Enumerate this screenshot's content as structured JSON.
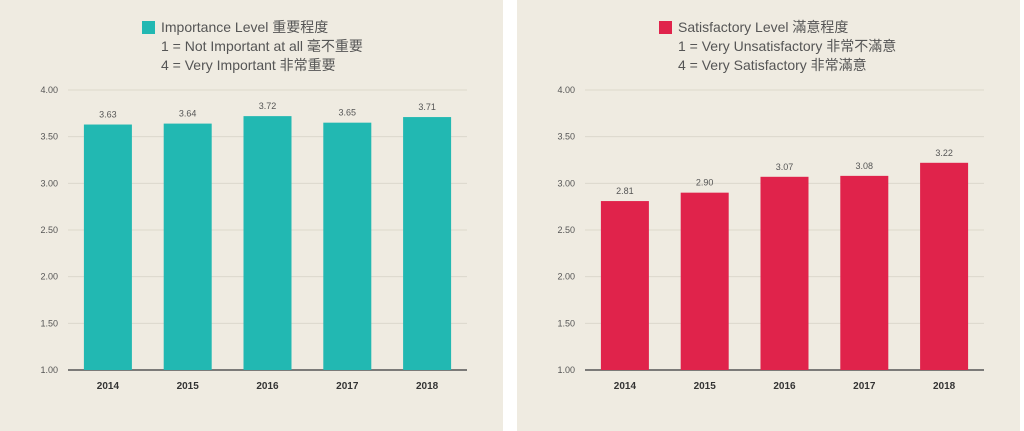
{
  "chart_data": [
    {
      "type": "bar",
      "legend": {
        "title": "Importance Level 重要程度",
        "lines": [
          "1 = Not Important at all 毫不重要",
          "4 = Very Important 非常重要"
        ]
      },
      "color": "#22b8b2",
      "categories": [
        "2014",
        "2015",
        "2016",
        "2017",
        "2018"
      ],
      "values": [
        3.63,
        3.64,
        3.72,
        3.65,
        3.71
      ],
      "value_labels": [
        "3.63",
        "3.64",
        "3.72",
        "3.65",
        "3.71"
      ],
      "ylim": [
        1.0,
        4.0
      ],
      "yticks": [
        "1.00",
        "1.50",
        "2.00",
        "2.50",
        "3.00",
        "3.50",
        "4.00"
      ],
      "grid": true
    },
    {
      "type": "bar",
      "legend": {
        "title": "Satisfactory Level 滿意程度",
        "lines": [
          "1 = Very Unsatisfactory 非常不滿意",
          "4 = Very Satisfactory 非常滿意"
        ]
      },
      "color": "#e0234b",
      "categories": [
        "2014",
        "2015",
        "2016",
        "2017",
        "2018"
      ],
      "values": [
        2.81,
        2.9,
        3.07,
        3.08,
        3.22
      ],
      "value_labels": [
        "2.81",
        "2.90",
        "3.07",
        "3.08",
        "3.22"
      ],
      "ylim": [
        1.0,
        4.0
      ],
      "yticks": [
        "1.00",
        "1.50",
        "2.00",
        "2.50",
        "3.00",
        "3.50",
        "4.00"
      ],
      "grid": true
    }
  ]
}
